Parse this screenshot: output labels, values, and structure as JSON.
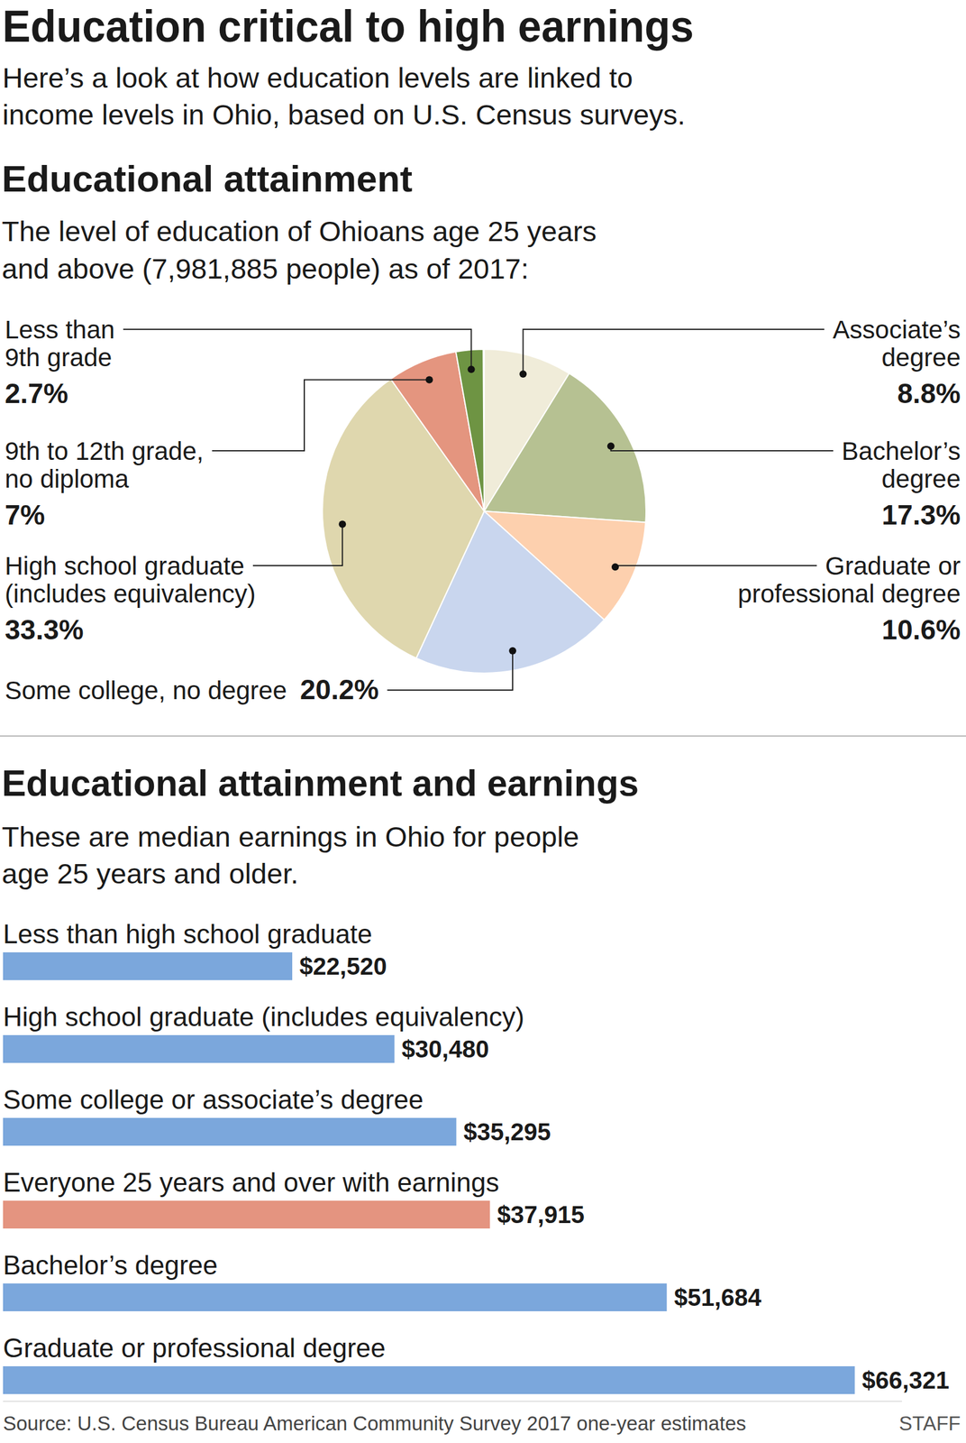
{
  "title": "Education critical to high earnings",
  "subtitle": "Here’s a look at how education levels are linked to income levels in Ohio, based on U.S. Census surveys.",
  "chart_data": [
    {
      "type": "pie",
      "title": "Educational attainment",
      "subtitle": "The level of education of Ohioans age 25 years and above (7,981,885 people) as of 2017:",
      "categories": [
        "Associate’s degree",
        "Bachelor’s degree",
        "Graduate or professional degree",
        "Some college, no degree",
        "High school graduate (includes equivalency)",
        "9th to 12th grade, no diploma",
        "Less than 9th grade"
      ],
      "values": [
        8.8,
        17.3,
        10.6,
        20.2,
        33.3,
        7,
        2.7
      ],
      "value_labels": [
        "8.8%",
        "17.3%",
        "10.6%",
        "20.2%",
        "33.3%",
        "7%",
        "2.7%"
      ],
      "colors": [
        "#f0ecd9",
        "#b6c192",
        "#fdd0ae",
        "#c9d6ee",
        "#dfd7ae",
        "#e4957f",
        "#6e9443"
      ],
      "data_labels": true
    },
    {
      "type": "bar",
      "title": "Educational attainment and earnings",
      "subtitle": "These are median earnings in Ohio for people age 25 years and older.",
      "orientation": "horizontal",
      "categories": [
        "Less than high school graduate",
        "High school graduate (includes equivalency)",
        "Some college or associate’s degree",
        "Everyone 25 years and over with earnings",
        "Bachelor’s degree",
        "Graduate or professional degree"
      ],
      "values": [
        22520,
        30480,
        35295,
        37915,
        51684,
        66321
      ],
      "value_labels": [
        "$22,520",
        "$30,480",
        "$35,295",
        "$37,915",
        "$51,684",
        "$66,321"
      ],
      "colors": [
        "#7ba7dc",
        "#7ba7dc",
        "#7ba7dc",
        "#e49480",
        "#7ba7dc",
        "#7ba7dc"
      ],
      "xlim": [
        0,
        70000
      ],
      "tick_labels": false,
      "data_labels": true
    }
  ],
  "source": "Source: U.S. Census Bureau American Community Survey 2017 one-year estimates",
  "credit": "STAFF"
}
